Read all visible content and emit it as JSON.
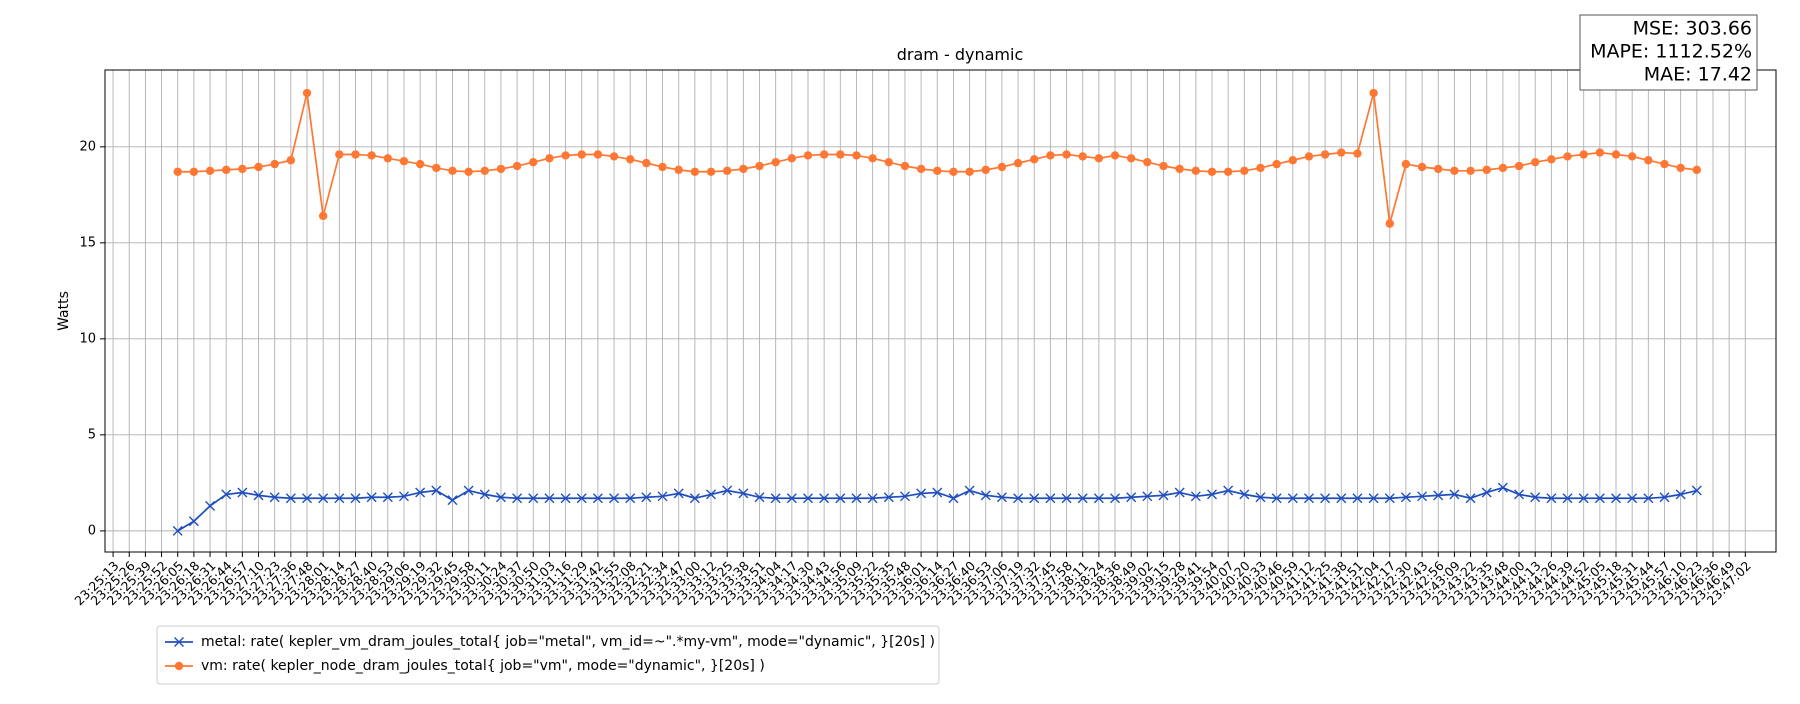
{
  "chart_data": {
    "type": "line",
    "title": "dram - dynamic",
    "ylabel": "Watts",
    "annotations": [
      "MSE: 303.66",
      "MAPE: 1112.52%",
      "MAE: 17.42"
    ],
    "categories": [
      "23:25:13",
      "23:25:26",
      "23:25:39",
      "23:25:52",
      "23:26:05",
      "23:26:18",
      "23:26:31",
      "23:26:44",
      "23:26:57",
      "23:27:10",
      "23:27:23",
      "23:27:36",
      "23:27:48",
      "23:28:01",
      "23:28:14",
      "23:28:27",
      "23:28:40",
      "23:28:53",
      "23:29:06",
      "23:29:19",
      "23:29:32",
      "23:29:45",
      "23:29:58",
      "23:30:11",
      "23:30:24",
      "23:30:37",
      "23:30:50",
      "23:31:03",
      "23:31:16",
      "23:31:29",
      "23:31:42",
      "23:31:55",
      "23:32:08",
      "23:32:21",
      "23:32:34",
      "23:32:47",
      "23:33:00",
      "23:33:12",
      "23:33:25",
      "23:33:38",
      "23:33:51",
      "23:34:04",
      "23:34:17",
      "23:34:30",
      "23:34:43",
      "23:34:56",
      "23:35:09",
      "23:35:22",
      "23:35:35",
      "23:35:48",
      "23:36:01",
      "23:36:14",
      "23:36:27",
      "23:36:40",
      "23:36:53",
      "23:37:06",
      "23:37:19",
      "23:37:32",
      "23:37:45",
      "23:37:58",
      "23:38:11",
      "23:38:24",
      "23:38:36",
      "23:38:49",
      "23:39:02",
      "23:39:15",
      "23:39:28",
      "23:39:41",
      "23:39:54",
      "23:40:07",
      "23:40:20",
      "23:40:33",
      "23:40:46",
      "23:40:59",
      "23:41:12",
      "23:41:25",
      "23:41:38",
      "23:41:51",
      "23:42:04",
      "23:42:17",
      "23:42:30",
      "23:42:43",
      "23:42:56",
      "23:43:09",
      "23:43:22",
      "23:43:35",
      "23:43:48",
      "23:44:00",
      "23:44:13",
      "23:44:26",
      "23:44:39",
      "23:44:52",
      "23:45:05",
      "23:45:18",
      "23:45:31",
      "23:45:44",
      "23:45:57",
      "23:46:10",
      "23:46:23",
      "23:46:36",
      "23:46:49",
      "23:47:02"
    ],
    "series": [
      {
        "name": "metal: rate( kepler_vm_dram_joules_total{ job=\"metal\", vm_id=~\".*my-vm\", mode=\"dynamic\", }[20s] )",
        "color": "#1f4fbf",
        "marker": "x",
        "values": [
          null,
          null,
          null,
          null,
          0,
          0.5,
          1.3,
          1.9,
          2.0,
          1.85,
          1.75,
          1.7,
          1.7,
          1.7,
          1.7,
          1.7,
          1.75,
          1.75,
          1.8,
          2.0,
          2.1,
          1.6,
          2.1,
          1.9,
          1.75,
          1.7,
          1.7,
          1.7,
          1.7,
          1.7,
          1.7,
          1.7,
          1.7,
          1.75,
          1.8,
          1.95,
          1.7,
          1.9,
          2.1,
          1.95,
          1.75,
          1.7,
          1.7,
          1.7,
          1.7,
          1.7,
          1.7,
          1.7,
          1.75,
          1.8,
          1.95,
          2.0,
          1.7,
          2.1,
          1.85,
          1.75,
          1.7,
          1.7,
          1.7,
          1.7,
          1.7,
          1.7,
          1.7,
          1.75,
          1.8,
          1.85,
          2.0,
          1.8,
          1.9,
          2.1,
          1.9,
          1.75,
          1.7,
          1.7,
          1.7,
          1.7,
          1.7,
          1.7,
          1.7,
          1.7,
          1.75,
          1.8,
          1.85,
          1.9,
          1.7,
          2.0,
          2.25,
          1.9,
          1.75,
          1.7,
          1.7,
          1.7,
          1.7,
          1.7,
          1.7,
          1.7,
          1.75,
          1.9,
          2.1,
          null,
          null,
          null
        ]
      },
      {
        "name": "vm: rate( kepler_node_dram_joules_total{ job=\"vm\", mode=\"dynamic\", }[20s] )",
        "color": "#ff7733",
        "marker": "o",
        "values": [
          null,
          null,
          null,
          null,
          18.7,
          18.7,
          18.75,
          18.8,
          18.85,
          18.95,
          19.1,
          19.3,
          22.8,
          16.4,
          19.6,
          19.6,
          19.55,
          19.4,
          19.25,
          19.1,
          18.9,
          18.75,
          18.7,
          18.75,
          18.85,
          19.0,
          19.2,
          19.4,
          19.55,
          19.6,
          19.6,
          19.5,
          19.35,
          19.15,
          18.95,
          18.8,
          18.7,
          18.7,
          18.75,
          18.85,
          19.0,
          19.2,
          19.4,
          19.55,
          19.6,
          19.6,
          19.55,
          19.4,
          19.2,
          19.0,
          18.85,
          18.75,
          18.7,
          18.7,
          18.8,
          18.95,
          19.15,
          19.35,
          19.55,
          19.6,
          19.5,
          19.4,
          19.55,
          19.4,
          19.2,
          19.0,
          18.85,
          18.75,
          18.7,
          18.7,
          18.75,
          18.9,
          19.1,
          19.3,
          19.5,
          19.6,
          19.7,
          19.65,
          22.8,
          16.0,
          19.1,
          18.95,
          18.85,
          18.75,
          18.75,
          18.8,
          18.9,
          19.0,
          19.2,
          19.35,
          19.5,
          19.6,
          19.7,
          19.6,
          19.5,
          19.3,
          19.1,
          18.9,
          18.8,
          null,
          null,
          null
        ]
      }
    ],
    "ylim": [
      -1.1,
      24
    ],
    "yticks": [
      0,
      5,
      10,
      15,
      20
    ],
    "grid": true,
    "legend": "lower left"
  }
}
